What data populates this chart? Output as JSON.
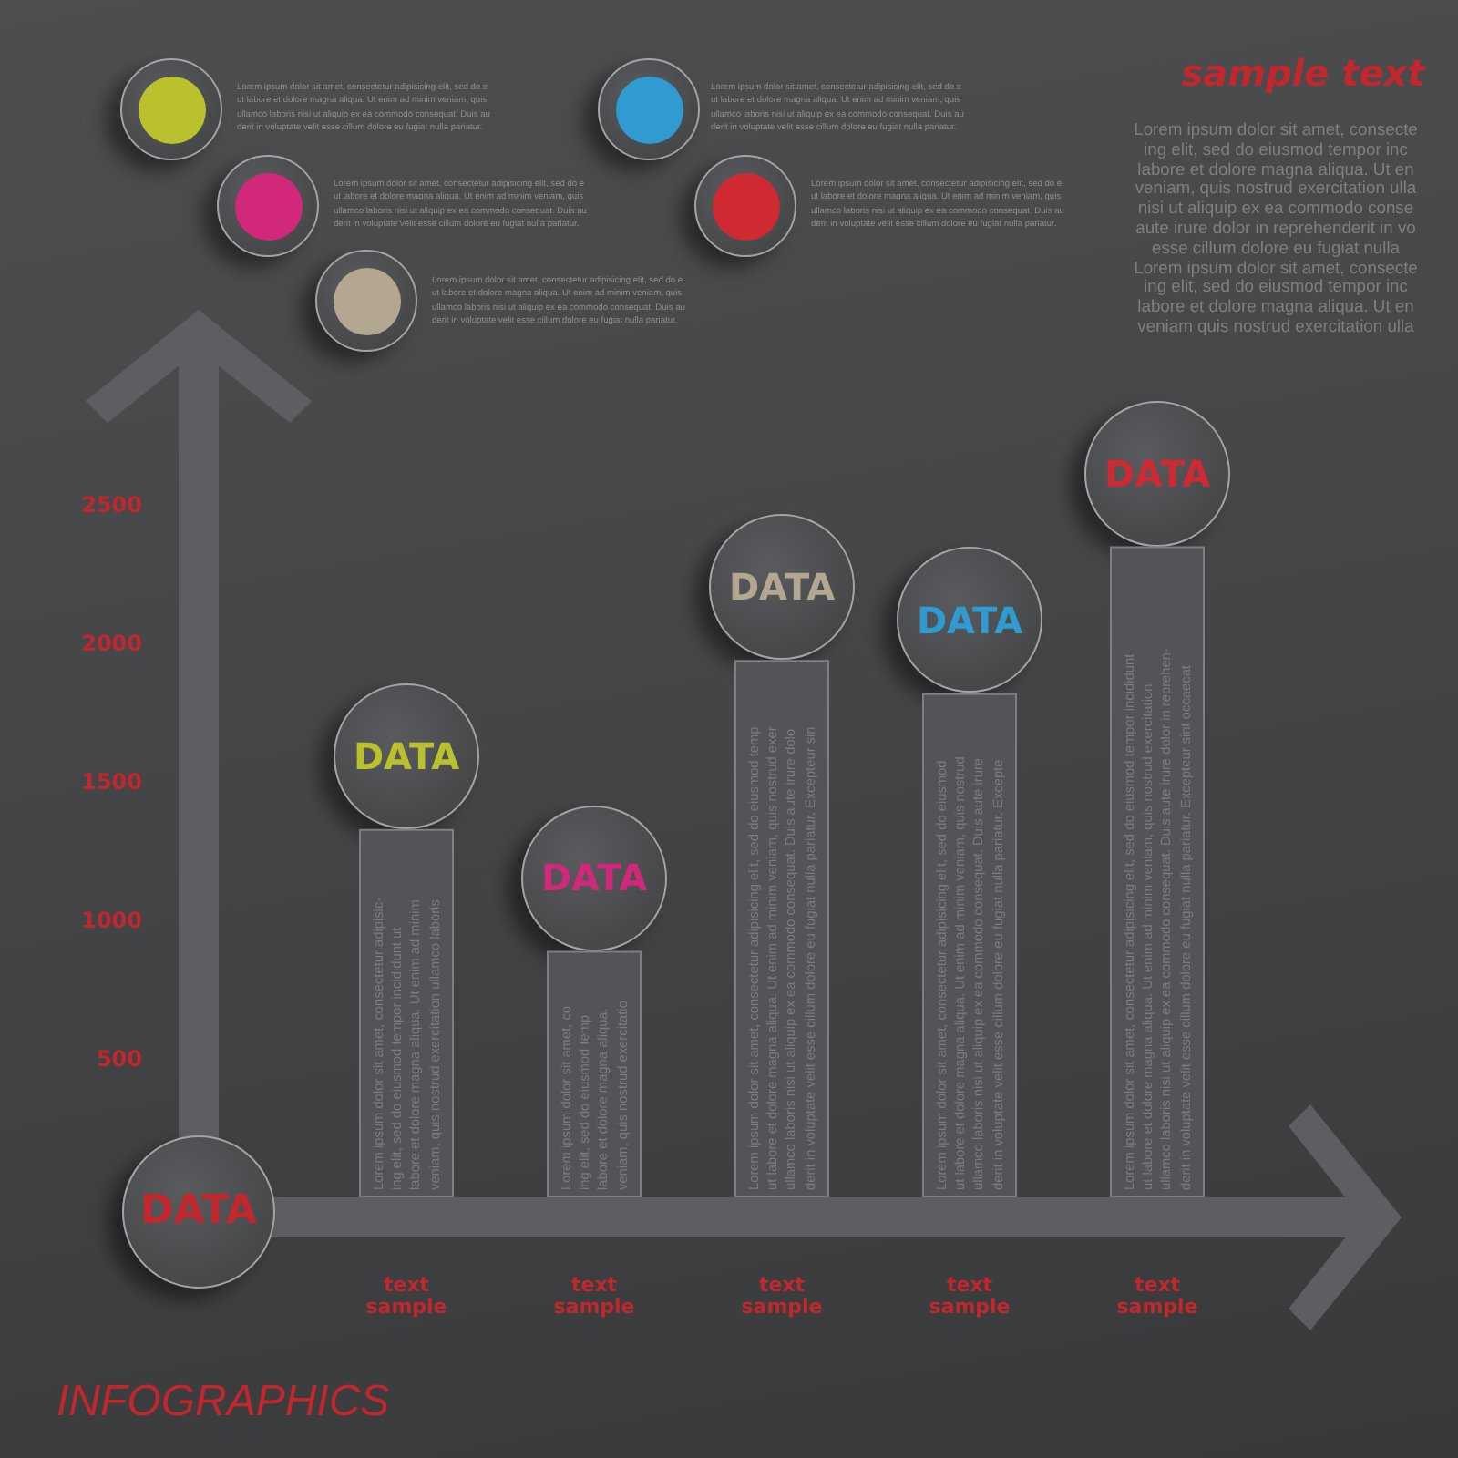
{
  "chart_data": {
    "type": "bar",
    "title": "INFOGRAPHICS",
    "categories": [
      "text\nsample",
      "text\nsample",
      "text\nsample",
      "text\nsample",
      "text\nsample"
    ],
    "values": [
      1330,
      890,
      1940,
      1820,
      2350
    ],
    "color": "#535457",
    "value_labels": [
      "DATA",
      "DATA",
      "DATA",
      "DATA",
      "DATA"
    ],
    "ylim": [
      0,
      3000
    ],
    "yticks": [
      500,
      1000,
      1500,
      2000,
      2500
    ],
    "annotations": [
      "sample text",
      "Lorem ipsum dolor sit amet, consecte\ning elit, sed do eiusmod tempor inc\nlabore et dolore magna aliqua. Ut en\nveniam, quis nostrud exercitation ulla\nnisi ut aliquip ex ea commodo conse\naute irure dolor in reprehenderit in vo\nesse cillum dolore eu fugiat nulla\nLorem ipsum dolor sit amet, consecte\ning elit, sed do eiusmod tempor inc\nlabore et dolore magna aliqua. Ut en\nveniam quis nostrud exercitation ulla",
      "Lorem ipsum dolor sit amet, consectetur adipisicing elit, sed do e\nut labore et dolore magna aliqua. Ut enim ad minim veniam, quis\nullamco laboris nisi ut aliquip ex ea commodo consequat. Duis au\nderit in voluptate velit esse cillum dolore eu fugiat nulla pariatur.",
      "Lorem ipsum dolor sit amet, consectetur adipisicing elit, sed do e\nut labore et dolore magna aliqua. Ut enim ad minim veniam, quis\nullamco laboris nisi ut aliquip ex ea commodo consequat. Duis au\nderit in voluptate velit esse cillum dolore eu fugiat nulla pariatur.",
      "Lorem ipsum dolor sit amet, consectetur adipisicing elit, sed do e\nut labore et dolore magna aliqua. Ut enim ad minim veniam, quis\nullamco laboris nisi ut aliquip ex ea commodo consequat. Duis au\nderit in voluptate velit esse cillum dolore eu fugiat nulla pariatur.",
      "Lorem ipsum dolor sit amet, consectetur adipisicing elit, sed do e\nut labore et dolore magna aliqua. Ut enim ad minim veniam, quis\nullamco laboris nisi ut aliquip ex ea commodo consequat. Duis au\nderit in voluptate velit esse cillum dolore eu fugiat nulla pariatur.",
      "Lorem ipsum dolor sit amet, consectetur adipisicing elit, sed do e\nut labore et dolore magna aliqua. Ut enim ad minim veniam, quis\nullamco laboris nisi ut aliquip ex ea commodo consequat. Duis au\nderit in voluptate velit esse cillum dolore eu fugiat nulla pariatur.",
      "Lorem ipsum dolor sit amet, consectetur adipisic-\ning elit, sed do eiusmod tempor incididunt ut\nlabore et dolore magna aliqua. Ut enim ad minim\nveniam, quis nostrud exercitation ullamco laboris",
      "Lorem ipsum dolor sit amet, co\ning elit, sed do eiusmod temp\nlabore et dolore magna aliqua.\nveniam, quis nostrud exercitatio",
      "Lorem ipsum dolor sit amet, consectetur adipisicing elit, sed do eiusmod temp\nut labore et dolore magna aliqua. Ut enim ad minim veniam, quis nostrud exer\nullamco laboris nisi ut aliquip ex ea commodo consequat. Duis aute irure dolo\nderit in voluptate velit esse cillum dolore eu fugiat nulla pariatur. Excepteur sin",
      "Lorem ipsum dolor sit amet, consectetur adipisicing elit, sed do eiusmod\nut labore et dolore magna aliqua. Ut enim ad minim veniam, quis nostrud\nullamco laboris nisi ut aliquip ex ea commodo consequat. Duis aute irure\nderit in voluptate velit esse cillum dolore eu fugiat nulla pariatur. Excepte",
      "Lorem ipsum dolor sit amet, consectetur adipisicing elit, sed do eiusmod tempor incididunt\nut labore et dolore magna aliqua. Ut enim ad minim veniam, quis nostrud exercitation\nullamco laboris nisi ut aliquip ex ea commodo consequat. Duis aute irure dolor in reprehen-\nderit in voluptate velit esse cillum dolore eu fugiat nulla pariatur. Excepteur sint occaecat",
      "DATA"
    ]
  }
}
